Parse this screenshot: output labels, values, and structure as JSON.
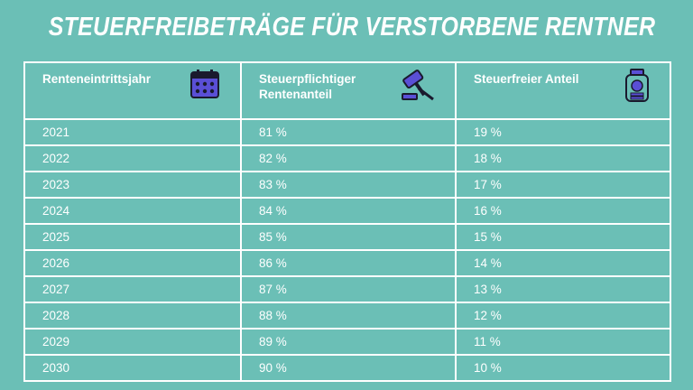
{
  "title": "STEUERFREIBETRÄGE FÜR VERSTORBENE RENTNER",
  "chart_data": {
    "type": "table",
    "columns": [
      {
        "label": "Renteneintrittsjahr",
        "icon": "calendar-icon"
      },
      {
        "label": "Steuerpflichtiger Rentenanteil",
        "icon": "gavel-icon"
      },
      {
        "label": "Steuerfreier Anteil",
        "icon": "money-jar-icon"
      }
    ],
    "rows": [
      [
        "2021",
        "81 %",
        "19 %"
      ],
      [
        "2022",
        "82 %",
        "18 %"
      ],
      [
        "2023",
        "83 %",
        "17 %"
      ],
      [
        "2024",
        "84 %",
        "16 %"
      ],
      [
        "2025",
        "85 %",
        "15 %"
      ],
      [
        "2026",
        "86 %",
        "14 %"
      ],
      [
        "2027",
        "87 %",
        "13 %"
      ],
      [
        "2028",
        "88 %",
        "12 %"
      ],
      [
        "2029",
        "89 %",
        "11 %"
      ],
      [
        "2030",
        "90 %",
        "10 %"
      ]
    ]
  },
  "colors": {
    "background": "#6bbfb6",
    "icon_fill": "#5a4fd6",
    "icon_outline": "#1a1a2e",
    "text": "#ffffff"
  }
}
